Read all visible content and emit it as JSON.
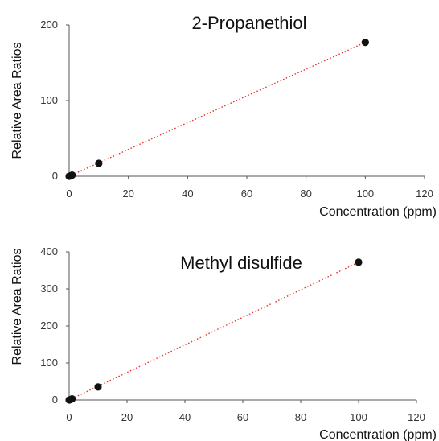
{
  "chart_data": [
    {
      "type": "scatter",
      "title": "2-Propanethiol",
      "xlabel": "Concentration (ppm)",
      "ylabel": "Relative Area Ratios",
      "xlim": [
        0,
        120
      ],
      "ylim": [
        0,
        200
      ],
      "xticks": [
        0,
        20,
        40,
        60,
        80,
        100,
        120
      ],
      "yticks": [
        0,
        100,
        200
      ],
      "grid": false,
      "points": [
        {
          "x": 0,
          "y": 0
        },
        {
          "x": 0.5,
          "y": 0.5
        },
        {
          "x": 1,
          "y": 1.5
        },
        {
          "x": 10,
          "y": 17
        },
        {
          "x": 100,
          "y": 177
        }
      ],
      "trendline": {
        "style": "dotted",
        "from": [
          0,
          0
        ],
        "to": [
          100,
          177
        ]
      },
      "colors": {
        "marker": "#111111",
        "trendline": "#e8312a",
        "axis": "#555555"
      }
    },
    {
      "type": "scatter",
      "title": "Methyl disulfide",
      "xlabel": "Concentration (ppm)",
      "ylabel": "Relative Area Ratios",
      "xlim": [
        0,
        120
      ],
      "ylim": [
        0,
        400
      ],
      "xticks": [
        0,
        20,
        40,
        60,
        80,
        100,
        120
      ],
      "yticks": [
        0,
        100,
        200,
        300,
        400
      ],
      "grid": false,
      "points": [
        {
          "x": 0,
          "y": 0
        },
        {
          "x": 0.5,
          "y": 1
        },
        {
          "x": 1,
          "y": 3
        },
        {
          "x": 10,
          "y": 35
        },
        {
          "x": 100,
          "y": 372
        }
      ],
      "trendline": {
        "style": "dotted",
        "from": [
          0,
          0
        ],
        "to": [
          100,
          372
        ]
      },
      "colors": {
        "marker": "#111111",
        "trendline": "#e8312a",
        "axis": "#555555"
      }
    }
  ]
}
